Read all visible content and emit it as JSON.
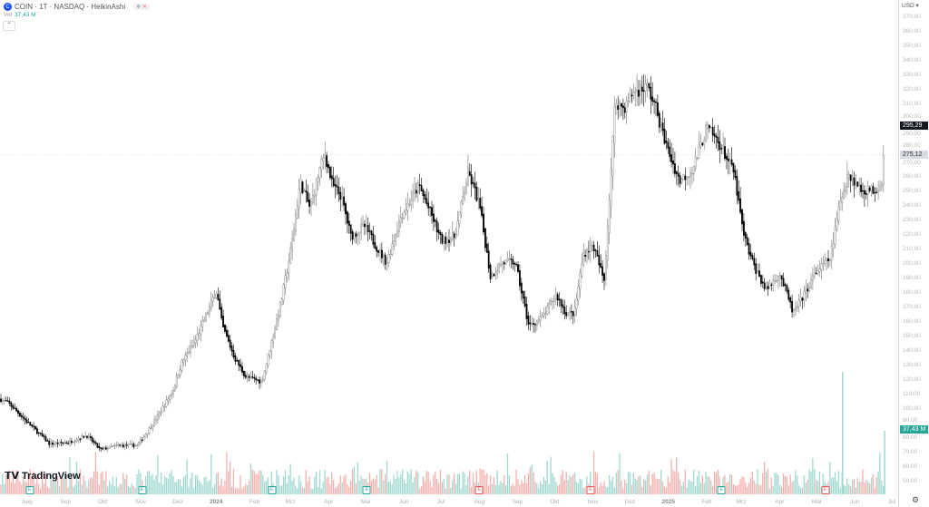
{
  "legend": {
    "symbol": "COIN",
    "title": "COIN · 1T · NASDAQ · HeikinAshi",
    "vol_label": "Vol",
    "vol_value": "37,43 M",
    "logo_letter": "C"
  },
  "brand": "TradingView",
  "currency": "USD",
  "price_tags": {
    "last": "295,29",
    "prev_close": "275,12",
    "volume": "37,43 M"
  },
  "colors": {
    "up_volume": "#9fd8d0",
    "down_volume": "#f3b1ad",
    "accent_green": "#26a69a",
    "accent_red": "#ef5350",
    "candle": "#000000"
  },
  "icons": {
    "settings": "gear-icon",
    "collapse": "chevron-up-icon",
    "logo": "tradingview-logo-icon"
  },
  "chart_data": {
    "type": "candlestick",
    "style": "HeikinAshi",
    "interval": "1T",
    "ylim": [
      45,
      375
    ],
    "xlim": [
      "2023-07-10",
      "2025-07-06"
    ],
    "y_ticks": [
      "370,00",
      "360,00",
      "350,00",
      "340,00",
      "330,00",
      "320,00",
      "310,00",
      "300,00",
      "290,00",
      "280,00",
      "270,00",
      "260,00",
      "250,00",
      "240,00",
      "230,00",
      "220,00",
      "210,00",
      "200,00",
      "190,00",
      "180,00",
      "170,00",
      "160,00",
      "150,00",
      "140,00",
      "130,00",
      "120,00",
      "110,00",
      "100,00",
      "90,00",
      "80,00",
      "70,00",
      "60,00",
      "50,00"
    ],
    "x_ticks": [
      {
        "label": "Aug",
        "date": "2023-08-01"
      },
      {
        "label": "Sep",
        "date": "2023-09-01"
      },
      {
        "label": "Okt",
        "date": "2023-10-01"
      },
      {
        "label": "Nov",
        "date": "2023-11-01"
      },
      {
        "label": "Dez",
        "date": "2023-12-01"
      },
      {
        "label": "2024",
        "date": "2024-01-01",
        "year": true
      },
      {
        "label": "Feb",
        "date": "2024-02-01"
      },
      {
        "label": "Mrz",
        "date": "2024-03-01"
      },
      {
        "label": "Apr",
        "date": "2024-04-01"
      },
      {
        "label": "Mai",
        "date": "2024-05-01"
      },
      {
        "label": "Jun",
        "date": "2024-06-01"
      },
      {
        "label": "Jul",
        "date": "2024-07-01"
      },
      {
        "label": "Aug",
        "date": "2024-08-01"
      },
      {
        "label": "Sep",
        "date": "2024-09-01"
      },
      {
        "label": "Okt",
        "date": "2024-10-01"
      },
      {
        "label": "Nov",
        "date": "2024-11-01"
      },
      {
        "label": "Dez",
        "date": "2024-12-01"
      },
      {
        "label": "2025",
        "date": "2025-01-01",
        "year": true
      },
      {
        "label": "Feb",
        "date": "2025-02-01"
      },
      {
        "label": "Mrz",
        "date": "2025-03-01"
      },
      {
        "label": "Apr",
        "date": "2025-04-01"
      },
      {
        "label": "Mai",
        "date": "2025-05-01"
      },
      {
        "label": "Jun",
        "date": "2025-06-01"
      },
      {
        "label": "Jul",
        "date": "2025-07-01"
      }
    ],
    "close_series": [
      [
        "2023-07-10",
        107
      ],
      [
        "2023-07-17",
        104
      ],
      [
        "2023-08-01",
        91
      ],
      [
        "2023-08-19",
        76
      ],
      [
        "2023-09-03",
        77
      ],
      [
        "2023-09-18",
        82
      ],
      [
        "2023-09-29",
        72
      ],
      [
        "2023-10-14",
        75
      ],
      [
        "2023-10-29",
        75
      ],
      [
        "2023-11-05",
        83
      ],
      [
        "2023-11-16",
        97
      ],
      [
        "2023-11-27",
        113
      ],
      [
        "2023-12-04",
        132
      ],
      [
        "2023-12-15",
        147
      ],
      [
        "2023-12-26",
        169
      ],
      [
        "2024-01-01",
        182
      ],
      [
        "2024-01-06",
        157
      ],
      [
        "2024-01-16",
        135
      ],
      [
        "2024-01-25",
        122
      ],
      [
        "2024-02-07",
        119
      ],
      [
        "2024-02-16",
        151
      ],
      [
        "2024-02-23",
        176
      ],
      [
        "2024-03-02",
        213
      ],
      [
        "2024-03-09",
        257
      ],
      [
        "2024-03-17",
        238
      ],
      [
        "2024-03-24",
        263
      ],
      [
        "2024-03-29",
        276
      ],
      [
        "2024-04-04",
        254
      ],
      [
        "2024-04-11",
        247
      ],
      [
        "2024-04-19",
        219
      ],
      [
        "2024-04-30",
        226
      ],
      [
        "2024-05-11",
        210
      ],
      [
        "2024-05-18",
        201
      ],
      [
        "2024-05-29",
        232
      ],
      [
        "2024-06-13",
        254
      ],
      [
        "2024-06-24",
        232
      ],
      [
        "2024-07-01",
        216
      ],
      [
        "2024-07-12",
        219
      ],
      [
        "2024-07-23",
        263
      ],
      [
        "2024-08-01",
        241
      ],
      [
        "2024-08-10",
        191
      ],
      [
        "2024-08-19",
        201
      ],
      [
        "2024-08-30",
        201
      ],
      [
        "2024-09-10",
        157
      ],
      [
        "2024-09-21",
        163
      ],
      [
        "2024-10-02",
        179
      ],
      [
        "2024-10-10",
        166
      ],
      [
        "2024-10-17",
        166
      ],
      [
        "2024-10-24",
        207
      ],
      [
        "2024-11-01",
        213
      ],
      [
        "2024-11-10",
        188
      ],
      [
        "2024-11-15",
        257
      ],
      [
        "2024-11-19",
        313
      ],
      [
        "2024-11-26",
        307
      ],
      [
        "2024-12-04",
        319
      ],
      [
        "2024-12-15",
        322
      ],
      [
        "2024-12-22",
        307
      ],
      [
        "2024-12-30",
        282
      ],
      [
        "2025-01-10",
        257
      ],
      [
        "2025-01-21",
        266
      ],
      [
        "2025-02-01",
        294
      ],
      [
        "2025-02-12",
        282
      ],
      [
        "2025-02-23",
        263
      ],
      [
        "2025-03-03",
        219
      ],
      [
        "2025-03-10",
        201
      ],
      [
        "2025-03-21",
        182
      ],
      [
        "2025-04-01",
        194
      ],
      [
        "2025-04-12",
        166
      ],
      [
        "2025-04-19",
        176
      ],
      [
        "2025-04-30",
        194
      ],
      [
        "2025-05-12",
        204
      ],
      [
        "2025-05-19",
        238
      ],
      [
        "2025-05-26",
        263
      ],
      [
        "2025-06-06",
        251
      ],
      [
        "2025-06-17",
        251
      ],
      [
        "2025-06-23",
        257
      ],
      [
        "2025-06-25",
        295.29
      ]
    ],
    "last_price": 295.29,
    "reference_price": 275.12,
    "volume_last": "37,43 M",
    "earnings_markers": [
      {
        "date": "2023-08-03",
        "result": "beat"
      },
      {
        "date": "2023-11-02",
        "result": "beat"
      },
      {
        "date": "2024-02-15",
        "result": "beat"
      },
      {
        "date": "2024-05-02",
        "result": "beat"
      },
      {
        "date": "2024-08-01",
        "result": "miss"
      },
      {
        "date": "2024-10-30",
        "result": "miss"
      },
      {
        "date": "2025-02-13",
        "result": "beat"
      },
      {
        "date": "2025-05-08",
        "result": "miss"
      }
    ],
    "earnings_label": "E",
    "grid": false
  }
}
